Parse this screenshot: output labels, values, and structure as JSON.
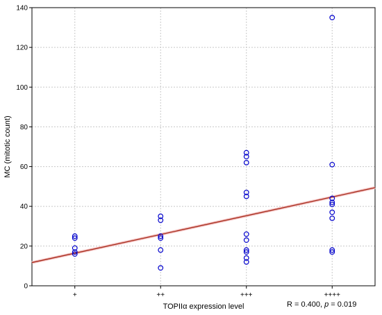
{
  "chart_data": {
    "type": "scatter",
    "title": "",
    "xlabel": "TOPIIα expression level",
    "ylabel": "MC (mitotic count)",
    "categories": [
      "+",
      "++",
      "+++",
      "++++"
    ],
    "ylim": [
      0,
      140
    ],
    "yticks": [
      0,
      20,
      40,
      60,
      80,
      100,
      120,
      140
    ],
    "grid": true,
    "series": [
      {
        "marker": "open-circle",
        "color": "#0000cc",
        "points": [
          {
            "x": "+",
            "y": 25
          },
          {
            "x": "+",
            "y": 24
          },
          {
            "x": "+",
            "y": 19
          },
          {
            "x": "+",
            "y": 17
          },
          {
            "x": "+",
            "y": 16
          },
          {
            "x": "++",
            "y": 35
          },
          {
            "x": "++",
            "y": 33
          },
          {
            "x": "++",
            "y": 25
          },
          {
            "x": "++",
            "y": 24
          },
          {
            "x": "++",
            "y": 18
          },
          {
            "x": "++",
            "y": 9
          },
          {
            "x": "+++",
            "y": 67
          },
          {
            "x": "+++",
            "y": 65
          },
          {
            "x": "+++",
            "y": 62
          },
          {
            "x": "+++",
            "y": 47
          },
          {
            "x": "+++",
            "y": 45
          },
          {
            "x": "+++",
            "y": 26
          },
          {
            "x": "+++",
            "y": 23
          },
          {
            "x": "+++",
            "y": 18
          },
          {
            "x": "+++",
            "y": 17
          },
          {
            "x": "+++",
            "y": 14
          },
          {
            "x": "+++",
            "y": 12
          },
          {
            "x": "++++",
            "y": 135
          },
          {
            "x": "++++",
            "y": 61
          },
          {
            "x": "++++",
            "y": 44
          },
          {
            "x": "++++",
            "y": 42
          },
          {
            "x": "++++",
            "y": 41
          },
          {
            "x": "++++",
            "y": 37
          },
          {
            "x": "++++",
            "y": 34
          },
          {
            "x": "++++",
            "y": 18
          },
          {
            "x": "++++",
            "y": 17
          }
        ]
      }
    ],
    "fit_line": {
      "color": "#a52a1a",
      "start": {
        "x": 0.5,
        "y": 11.7
      },
      "end": {
        "x": 4.5,
        "y": 49.4
      }
    }
  },
  "annotation": {
    "prefix": "R = 0.400, ",
    "p_symbol": "p",
    "suffix": " = 0.019"
  }
}
